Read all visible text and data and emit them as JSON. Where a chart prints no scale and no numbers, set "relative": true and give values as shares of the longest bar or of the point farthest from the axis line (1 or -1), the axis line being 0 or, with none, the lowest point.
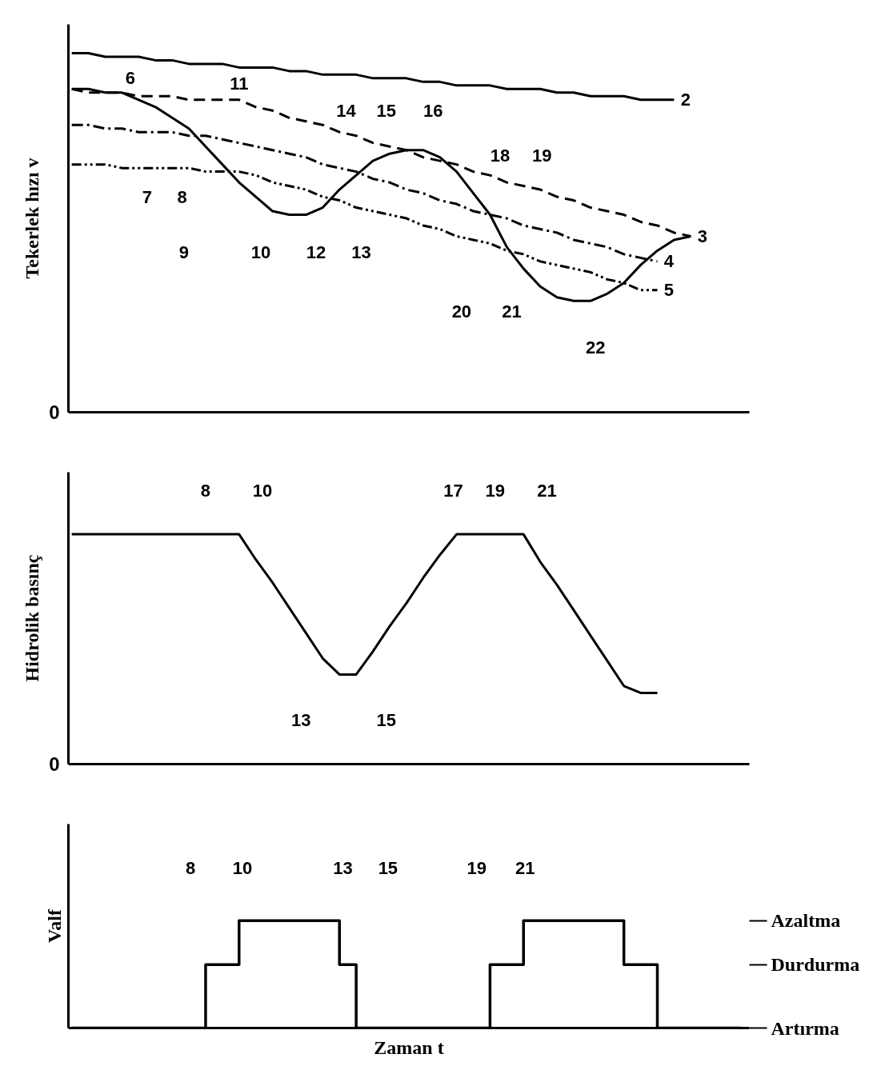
{
  "chart_data": [
    {
      "type": "line",
      "ylabel": "Tekerlek hızı v",
      "relative": true,
      "grid": false,
      "tick_labels": "y",
      "categories": [
        null,
        null,
        null,
        null,
        null,
        null,
        null,
        null,
        null,
        null,
        null,
        null,
        null,
        null,
        null,
        null,
        null,
        null,
        null,
        null,
        null,
        null,
        null,
        null,
        null,
        null,
        null,
        null,
        null,
        null,
        null,
        null,
        null,
        null,
        null,
        null,
        null,
        null,
        null,
        null,
        null
      ],
      "series": [
        {
          "color": "#000000",
          "line_style": "solid",
          "values": [
            0.9,
            0.9,
            0.89,
            0.89,
            0.87,
            0.85,
            0.82,
            0.79,
            0.74,
            0.69,
            0.64,
            0.6,
            0.56,
            0.55,
            0.55,
            0.57,
            0.62,
            0.66,
            0.7,
            0.72,
            0.73,
            0.73,
            0.71,
            0.67,
            0.61,
            0.55,
            0.46,
            0.4,
            0.35,
            0.32,
            0.31,
            0.31,
            0.33,
            0.36,
            0.41,
            0.45,
            0.48,
            0.49,
            null,
            null,
            null
          ]
        },
        {
          "name": "2",
          "color": "#000000",
          "line_style": "solid",
          "values": [
            1.0,
            1.0,
            0.99,
            0.99,
            0.99,
            0.98,
            0.98,
            0.97,
            0.97,
            0.97,
            0.96,
            0.96,
            0.96,
            0.95,
            0.95,
            0.94,
            0.94,
            0.94,
            0.93,
            0.93,
            0.93,
            0.92,
            0.92,
            0.91,
            0.91,
            0.91,
            0.9,
            0.9,
            0.9,
            0.89,
            0.89,
            0.88,
            0.88,
            0.88,
            0.87,
            0.87,
            0.87,
            null,
            null,
            null,
            null
          ]
        },
        {
          "name": "3",
          "color": "#000000",
          "line_style": "dashed",
          "values": [
            0.9,
            0.89,
            0.89,
            0.89,
            0.88,
            0.88,
            0.88,
            0.87,
            0.87,
            0.87,
            0.87,
            0.85,
            0.84,
            0.82,
            0.81,
            0.8,
            0.78,
            0.77,
            0.75,
            0.74,
            0.73,
            0.71,
            0.7,
            0.69,
            0.67,
            0.66,
            0.64,
            0.63,
            0.62,
            0.6,
            0.59,
            0.57,
            0.56,
            0.55,
            0.53,
            0.52,
            0.5,
            0.49,
            null,
            null,
            null
          ]
        },
        {
          "name": "4",
          "color": "#000000",
          "line_style": "dashdot",
          "values": [
            0.8,
            0.8,
            0.79,
            0.79,
            0.78,
            0.78,
            0.78,
            0.77,
            0.77,
            0.76,
            0.75,
            0.74,
            0.73,
            0.72,
            0.71,
            0.69,
            0.68,
            0.67,
            0.65,
            0.64,
            0.62,
            0.61,
            0.59,
            0.58,
            0.56,
            0.55,
            0.54,
            0.52,
            0.51,
            0.5,
            0.48,
            0.47,
            0.46,
            0.44,
            0.43,
            0.42,
            null,
            null,
            null,
            null,
            null
          ]
        },
        {
          "name": "5",
          "color": "#000000",
          "line_style": "dashdotdot",
          "values": [
            0.69,
            0.69,
            0.69,
            0.68,
            0.68,
            0.68,
            0.68,
            0.68,
            0.67,
            0.67,
            0.67,
            0.66,
            0.64,
            0.63,
            0.62,
            0.6,
            0.59,
            0.57,
            0.56,
            0.55,
            0.54,
            0.52,
            0.51,
            0.49,
            0.48,
            0.47,
            0.45,
            0.44,
            0.42,
            0.41,
            0.4,
            0.39,
            0.37,
            0.36,
            0.34,
            0.34,
            null,
            null,
            null,
            null,
            null
          ]
        }
      ],
      "annotations": [
        "0",
        "6",
        "11",
        "7",
        "8",
        "9",
        "10",
        "12",
        "13",
        "14",
        "15",
        "16",
        "18",
        "19",
        "20",
        "21",
        "22"
      ]
    },
    {
      "type": "line",
      "ylabel": "Hidrolik basınç",
      "relative": true,
      "grid": false,
      "tick_labels": "y",
      "categories": [
        null,
        null,
        null,
        null,
        null,
        null,
        null,
        null,
        null,
        null,
        null,
        null,
        null,
        null,
        null,
        null,
        null,
        null,
        null,
        null,
        null,
        null,
        null,
        null,
        null,
        null,
        null,
        null,
        null,
        null,
        null,
        null,
        null,
        null,
        null,
        null,
        null,
        null,
        null,
        null,
        null
      ],
      "series": [
        {
          "color": "#000000",
          "line_style": "solid",
          "values": [
            1.0,
            1.0,
            1.0,
            1.0,
            1.0,
            1.0,
            1.0,
            1.0,
            1.0,
            1.0,
            1.0,
            0.89,
            0.79,
            0.68,
            0.57,
            0.46,
            0.39,
            0.39,
            0.49,
            0.6,
            0.7,
            0.81,
            0.91,
            1.0,
            1.0,
            1.0,
            1.0,
            1.0,
            0.88,
            0.78,
            0.67,
            0.56,
            0.45,
            0.34,
            0.31,
            0.31,
            null,
            null,
            null,
            null,
            null
          ]
        }
      ],
      "annotations": [
        "0",
        "8",
        "10",
        "17",
        "19",
        "21",
        "13",
        "15"
      ]
    },
    {
      "type": "step",
      "ylabel": "Valf",
      "xlabel": "Zaman t",
      "relative": true,
      "grid": false,
      "tick_labels": "y",
      "categories": [
        null,
        null,
        null,
        null,
        null,
        null,
        null,
        null,
        null,
        null,
        null,
        null,
        null,
        null,
        null,
        null,
        null,
        null,
        null,
        null,
        null,
        null,
        null,
        null,
        null,
        null,
        null,
        null,
        null,
        null,
        null,
        null,
        null,
        null,
        null,
        null,
        null,
        null,
        null,
        null,
        null
      ],
      "series": [
        {
          "color": "#000000",
          "line_style": "solid",
          "values": [
            0,
            0,
            0,
            0,
            0,
            0,
            0,
            0,
            0.59,
            0.59,
            1,
            1,
            1,
            1,
            1,
            1,
            0.59,
            0,
            0,
            0,
            0,
            0,
            0,
            0,
            0,
            0.59,
            0.59,
            1,
            1,
            1,
            1,
            1,
            1,
            0.59,
            0.59,
            0,
            0,
            0,
            0,
            0,
            0
          ]
        }
      ],
      "annotations": [
        "8",
        "10",
        "13",
        "15",
        "19",
        "21",
        "Azaltma",
        "Durdurma",
        "Artırma"
      ]
    }
  ]
}
